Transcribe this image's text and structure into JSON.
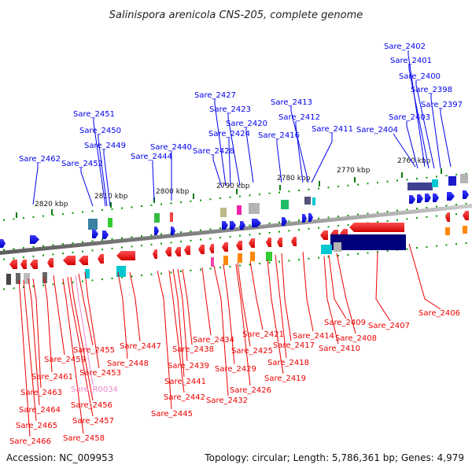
{
  "title": "Salinispora arenicola CNS-205, complete genome",
  "accession": "Accession: NC_009953",
  "summary": "Topology: circular; Length: 5,786,361 bp; Genes: 4,979",
  "colors": {
    "forward": "#0000ee",
    "reverse": "#ee0000",
    "rna": "#ee88cc",
    "backbone": "#888888",
    "ticks": "#009900"
  },
  "scale_labels": [
    "2820 kbp",
    "2810 kbp",
    "2800 kbp",
    "2790 kbp",
    "2780 kbp",
    "2770 kbp",
    "2760 kbp"
  ],
  "top_labels": [
    "Sare_2402",
    "Sare_2401",
    "Sare_2400",
    "Sare_2398",
    "Sare_2397",
    "Sare_2403",
    "Sare_2404",
    "Sare_2411",
    "Sare_2412",
    "Sare_2413",
    "Sare_2416",
    "Sare_2420",
    "Sare_2423",
    "Sare_2424",
    "Sare_2427",
    "Sare_2428",
    "Sare_2440",
    "Sare_2444",
    "Sare_2449",
    "Sare_2450",
    "Sare_2451",
    "Sare_2452",
    "Sare_2462"
  ],
  "bottom_labels": [
    "Sare_2406",
    "Sare_2407",
    "Sare_2408",
    "Sare_2409",
    "Sare_2410",
    "Sare_2414",
    "Sare_2417",
    "Sare_2418",
    "Sare_2419",
    "Sare_2421",
    "Sare_2425",
    "Sare_2426",
    "Sare_2429",
    "Sare_2432",
    "Sare_2434",
    "Sare_2438",
    "Sare_2439",
    "Sare_2441",
    "Sare_2442",
    "Sare_2445",
    "Sare_2447",
    "Sare_2448",
    "Sare_2453",
    "Sare_2455",
    "Sare_2459",
    "Sare_2461",
    "Sare_2463",
    "Sare_R0034",
    "Sare_2456",
    "Sare_2464",
    "Sare_2457",
    "Sare_2465",
    "Sare_2458",
    "Sare_2466"
  ]
}
